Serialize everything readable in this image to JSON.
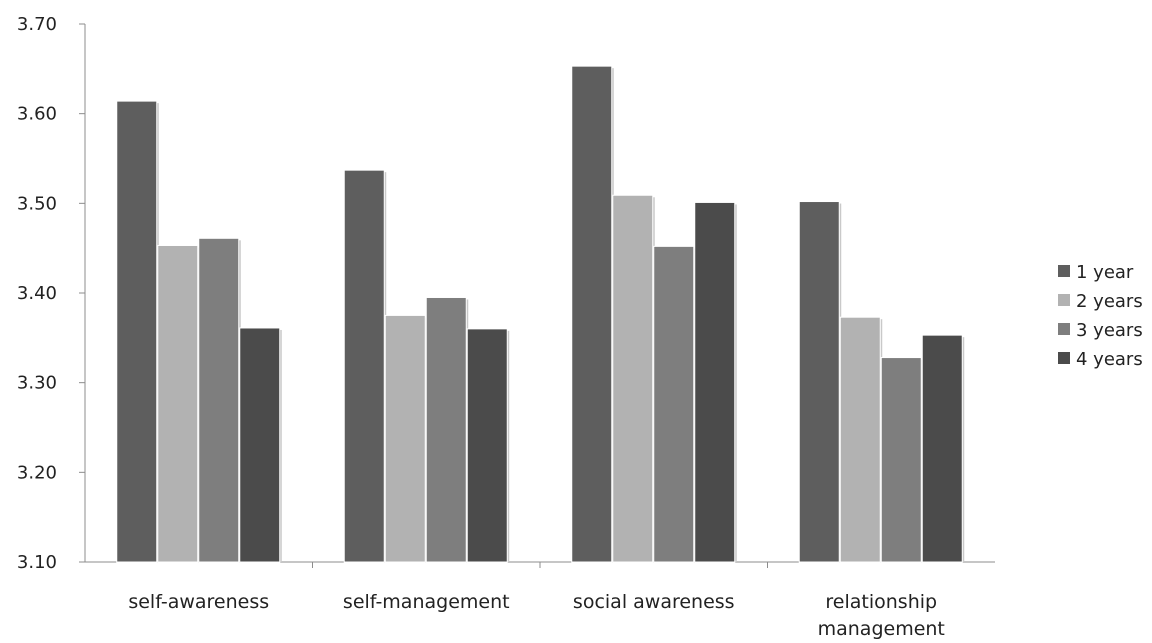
{
  "chart_data": {
    "type": "bar",
    "title": "",
    "xlabel": "",
    "ylabel": "",
    "categories": [
      "self-awareness",
      "self-management",
      "social awareness",
      "relationship management"
    ],
    "category_lines": [
      [
        "self-awareness"
      ],
      [
        "self-management"
      ],
      [
        "social awareness"
      ],
      [
        "relationship",
        "management"
      ]
    ],
    "series": [
      {
        "name": "1 year",
        "values": [
          3.614,
          3.537,
          3.653,
          3.502
        ],
        "color": "#5e5e5e"
      },
      {
        "name": "2 years",
        "values": [
          3.453,
          3.375,
          3.509,
          3.373
        ],
        "color": "#b2b2b2"
      },
      {
        "name": "3 years",
        "values": [
          3.461,
          3.395,
          3.452,
          3.328
        ],
        "color": "#7e7e7e"
      },
      {
        "name": "4 years",
        "values": [
          3.361,
          3.36,
          3.501,
          3.353
        ],
        "color": "#4b4b4b"
      }
    ],
    "ylim": [
      3.1,
      3.7
    ],
    "yticks": [
      "3.10",
      "3.20",
      "3.30",
      "3.40",
      "3.50",
      "3.60",
      "3.70"
    ],
    "grid": false,
    "legend_position": "right"
  }
}
